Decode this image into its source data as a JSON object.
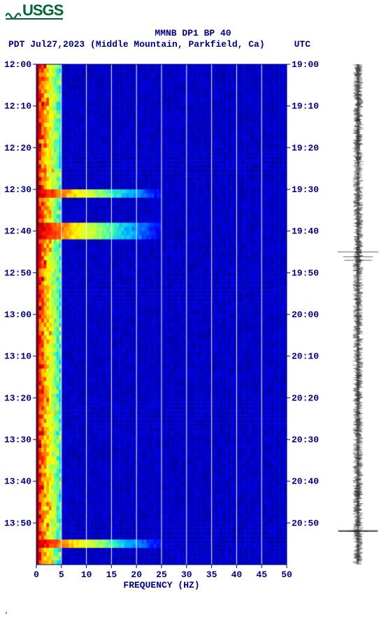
{
  "logo": {
    "text": "USGS",
    "color": "#006633"
  },
  "title_line1": "MMNB DP1 BP 40",
  "title_line2_left": "PDT  Jul27,2023 (Middle Mountain, Parkfield, Ca)",
  "title_line2_right": "UTC",
  "xlabel": "FREQUENCY (HZ)",
  "footer": "'",
  "spectrogram": {
    "type": "spectrogram",
    "xlim": [
      0,
      50
    ],
    "xtick_step": 5,
    "pdt_ticks": [
      "12:00",
      "12:10",
      "12:20",
      "12:30",
      "12:40",
      "12:50",
      "13:00",
      "13:10",
      "13:20",
      "13:30",
      "13:40",
      "13:50"
    ],
    "utc_ticks": [
      "19:00",
      "19:10",
      "19:20",
      "19:30",
      "19:40",
      "19:50",
      "20:00",
      "20:10",
      "20:20",
      "20:30",
      "20:40",
      "20:50"
    ],
    "background_color": "#0000ad",
    "grid_color": "#ffffff",
    "axis_color": "#000080",
    "label_fontsize": 13,
    "colormap_stops": [
      "#00008b",
      "#0000ff",
      "#0060ff",
      "#00c0ff",
      "#40ffb0",
      "#c0ff40",
      "#ffff00",
      "#ff8000",
      "#ff0000",
      "#800000"
    ],
    "low_freq_band_hz": [
      0,
      5
    ],
    "events_at_pdt": [
      "12:30",
      "12:38",
      "12:40",
      "13:54"
    ],
    "event_max_extent_hz": 25,
    "rows": 120
  },
  "seismogram": {
    "type": "waveform",
    "color": "#000000",
    "background": "#ffffff",
    "amplitude_norm": 0.35,
    "spike_rows": [
      45,
      46,
      47,
      112
    ],
    "spike_amplitude": 1.0,
    "rows": 120
  }
}
